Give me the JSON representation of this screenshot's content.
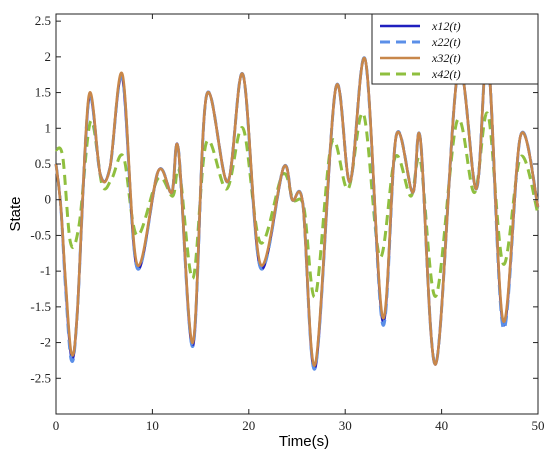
{
  "chart_data": {
    "type": "line",
    "title": "",
    "xlabel": "Time(s)",
    "ylabel": "State",
    "xlim": [
      0,
      50
    ],
    "ylim": [
      -3,
      2.6
    ],
    "grid": false,
    "legend_position": "top-right",
    "x_ticks": [
      "0",
      "10",
      "20",
      "30",
      "40",
      "50"
    ],
    "y_ticks": [
      "-2.5",
      "-2",
      "-1.5",
      "-1",
      "-0.5",
      "0",
      "0.5",
      "1",
      "1.5",
      "2",
      "2.5"
    ],
    "x_tick_values": [
      0,
      10,
      20,
      30,
      40,
      50
    ],
    "y_tick_values": [
      -2.5,
      -2,
      -1.5,
      -1,
      -0.5,
      0,
      0.5,
      1,
      1.5,
      2,
      2.5
    ],
    "series": [
      {
        "name": "x12(t)",
        "color": "#1f1fbf",
        "dash": "solid",
        "x": [
          0,
          0.5,
          1.0,
          1.6,
          2.2,
          3.4,
          4.6,
          5.6,
          6.9,
          8.4,
          10.6,
          12.0,
          12.7,
          14.2,
          15.6,
          17.8,
          19.4,
          21.2,
          23.6,
          24.5,
          25.6,
          26.9,
          29.0,
          30.5,
          32.1,
          33.9,
          35.3,
          37.0,
          37.8,
          39.4,
          41.7,
          43.6,
          44.8,
          46.4,
          48.2,
          50
        ],
        "y": [
          0.5,
          -0.1,
          -1.2,
          -2.2,
          -1.6,
          1.4,
          0.35,
          0.45,
          1.7,
          -0.95,
          0.4,
          0.1,
          0.7,
          -2.05,
          1.45,
          0.25,
          1.75,
          -0.95,
          0.45,
          0.0,
          -0.05,
          -2.35,
          1.55,
          0.25,
          1.95,
          -1.7,
          0.9,
          0.1,
          0.85,
          -2.3,
          1.8,
          0.15,
          2.0,
          -1.75,
          0.9,
          -0.1
        ]
      },
      {
        "name": "x22(t)",
        "color": "#5b8fe8",
        "dash": "dashed",
        "x": [
          0,
          0.5,
          1.0,
          1.6,
          2.2,
          3.4,
          4.6,
          5.6,
          6.9,
          8.4,
          10.6,
          12.0,
          12.7,
          14.2,
          15.6,
          17.8,
          19.4,
          21.2,
          23.6,
          24.5,
          25.6,
          26.9,
          29.0,
          30.5,
          32.1,
          33.9,
          35.3,
          37.0,
          37.8,
          39.4,
          41.7,
          43.6,
          44.8,
          46.4,
          48.2,
          50
        ],
        "y": [
          0.5,
          -0.1,
          -1.25,
          -2.25,
          -1.6,
          1.4,
          0.35,
          0.45,
          1.7,
          -0.95,
          0.4,
          0.1,
          0.7,
          -2.05,
          1.45,
          0.25,
          1.75,
          -0.95,
          0.45,
          0.0,
          -0.05,
          -2.35,
          1.55,
          0.25,
          1.95,
          -1.75,
          0.9,
          0.1,
          0.85,
          -2.3,
          1.8,
          0.15,
          2.0,
          -1.8,
          0.9,
          -0.1
        ]
      },
      {
        "name": "x32(t)",
        "color": "#c8874a",
        "dash": "solid",
        "x": [
          0,
          0.5,
          1.0,
          1.6,
          2.2,
          3.4,
          4.6,
          5.6,
          6.9,
          8.4,
          10.6,
          12.0,
          12.7,
          14.2,
          15.6,
          17.8,
          19.4,
          21.2,
          23.6,
          24.5,
          25.6,
          26.9,
          29.0,
          30.5,
          32.1,
          33.9,
          35.3,
          37.0,
          37.8,
          39.4,
          41.7,
          43.6,
          44.8,
          46.4,
          48.2,
          50
        ],
        "y": [
          0.5,
          -0.1,
          -1.15,
          -2.15,
          -1.6,
          1.45,
          0.35,
          0.45,
          1.75,
          -0.9,
          0.4,
          0.1,
          0.7,
          -2.0,
          1.45,
          0.25,
          1.75,
          -0.9,
          0.45,
          0.0,
          -0.05,
          -2.3,
          1.55,
          0.25,
          1.95,
          -1.65,
          0.9,
          0.1,
          0.85,
          -2.3,
          1.8,
          0.15,
          2.0,
          -1.7,
          0.9,
          -0.1
        ]
      },
      {
        "name": "x42(t)",
        "color": "#8fbf3f",
        "dash": "dashed",
        "x": [
          0,
          0.7,
          1.5,
          2.4,
          3.6,
          4.8,
          5.8,
          7.0,
          8.4,
          10.6,
          12.1,
          12.8,
          14.2,
          15.6,
          17.7,
          19.4,
          21.2,
          23.5,
          24.6,
          25.7,
          26.9,
          28.6,
          30.3,
          31.9,
          33.6,
          35.2,
          36.8,
          37.8,
          39.4,
          41.6,
          43.4,
          44.8,
          46.4,
          48.2,
          50
        ],
        "y": [
          0.7,
          0.6,
          -0.6,
          -0.35,
          1.1,
          0.2,
          0.3,
          0.6,
          -0.5,
          0.3,
          0.05,
          0.4,
          -1.1,
          0.8,
          0.15,
          1.0,
          -0.6,
          0.35,
          0.0,
          -0.1,
          -1.35,
          0.8,
          0.15,
          1.2,
          -0.8,
          0.6,
          0.05,
          0.55,
          -1.35,
          1.1,
          0.1,
          1.2,
          -0.9,
          0.6,
          -0.2
        ]
      }
    ]
  }
}
